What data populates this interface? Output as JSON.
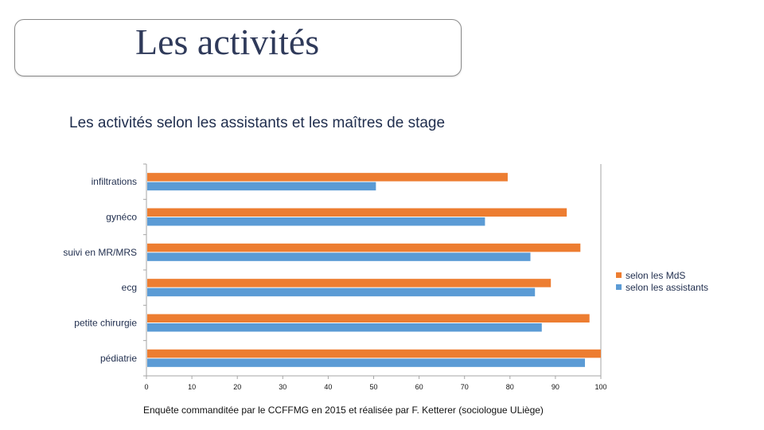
{
  "page": {
    "title": "Les activités",
    "source": "Enquête commanditée par le CCFFMG en 2015 et réalisée par F. Ketterer (sociologue ULiège)"
  },
  "colors": {
    "mds": "#ed7d31",
    "assistants": "#5b9bd5",
    "axis": "#a6a6a6",
    "text": "#1f2d4d"
  },
  "chart_data": {
    "type": "bar",
    "orientation": "horizontal",
    "title": "Les activités selon les assistants et les maîtres de stage",
    "categories": [
      "infiltrations",
      "gynéco",
      "suivi en MR/MRS",
      "ecg",
      "petite chirurgie",
      "pédiatrie"
    ],
    "series": [
      {
        "name": "selon les MdS",
        "values": [
          79.5,
          92.5,
          95.5,
          89,
          97.5,
          100
        ]
      },
      {
        "name": "selon les assistants",
        "values": [
          50.5,
          74.5,
          84.5,
          85.5,
          87,
          96.5
        ]
      }
    ],
    "xlim": [
      0,
      100
    ],
    "xticks": [
      "0",
      "10",
      "20",
      "30",
      "40",
      "50",
      "60",
      "70",
      "80",
      "90",
      "100"
    ],
    "legend_position": "right",
    "grid": false
  }
}
